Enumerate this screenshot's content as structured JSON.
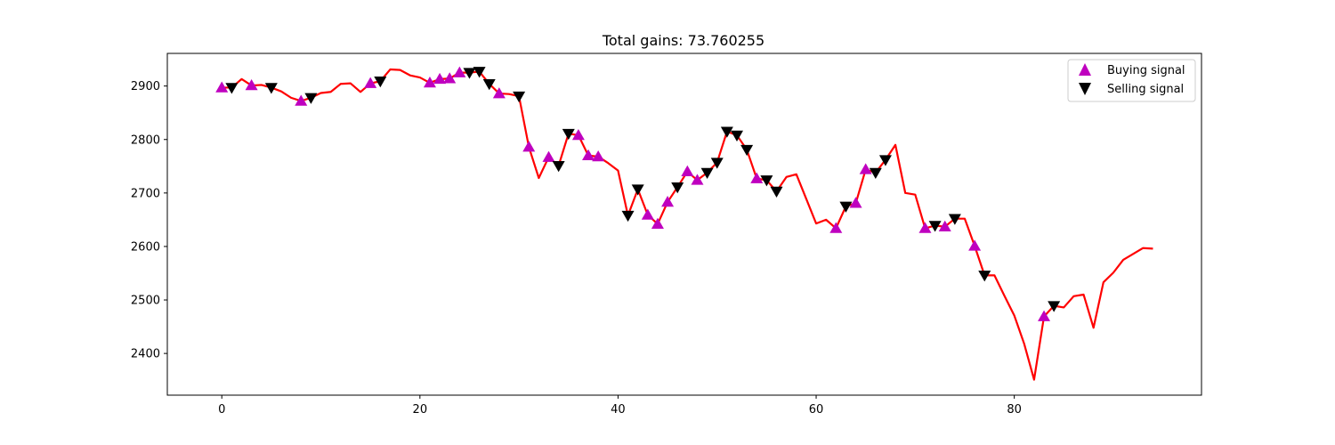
{
  "chart_data": {
    "type": "line",
    "title": "Total gains: 73.760255",
    "xlabel": "",
    "ylabel": "",
    "xlim": [
      -5.5,
      98.9
    ],
    "ylim": [
      2322,
      2961
    ],
    "xticks": [
      0,
      20,
      40,
      60,
      80
    ],
    "yticks": [
      2400,
      2500,
      2600,
      2700,
      2800,
      2900
    ],
    "xtick_labels": [
      "0",
      "20",
      "40",
      "60",
      "80"
    ],
    "ytick_labels": [
      "2400",
      "2500",
      "2600",
      "2700",
      "2800",
      "2900"
    ],
    "grid": false,
    "legend_position": "top-right",
    "line_color": "#ff0000",
    "buy_color": "#bf00bf",
    "sell_color": "#000000",
    "close": [
      2897,
      2897,
      2913,
      2901,
      2902,
      2897,
      2890,
      2878,
      2872,
      2878,
      2887,
      2889,
      2904,
      2905,
      2889,
      2905,
      2909,
      2931,
      2930,
      2920,
      2916,
      2906,
      2913,
      2914,
      2925,
      2925,
      2927,
      2904,
      2886,
      2885,
      2881,
      2786,
      2728,
      2767,
      2751,
      2811,
      2808,
      2770,
      2768,
      2756,
      2742,
      2658,
      2707,
      2659,
      2642,
      2683,
      2711,
      2740,
      2724,
      2738,
      2757,
      2815,
      2808,
      2781,
      2727,
      2724,
      2703,
      2730,
      2735,
      2689,
      2643,
      2650,
      2634,
      2675,
      2681,
      2744,
      2738,
      2762,
      2790,
      2700,
      2697,
      2634,
      2639,
      2637,
      2652,
      2652,
      2601,
      2546,
      2546,
      2508,
      2471,
      2418,
      2351,
      2469,
      2489,
      2486,
      2507,
      2510,
      2448,
      2533,
      2551,
      2575,
      2586,
      2597,
      2596
    ],
    "series": [
      {
        "name": "Buying signal",
        "marker": "triangle-up",
        "x": [
          0,
          3,
          8,
          15,
          21,
          22,
          23,
          24,
          28,
          31,
          33,
          36,
          37,
          38,
          43,
          44,
          45,
          47,
          48,
          54,
          62,
          64,
          65,
          71,
          73,
          76,
          83
        ],
        "y": [
          2897,
          2901,
          2872,
          2905,
          2906,
          2913,
          2914,
          2925,
          2886,
          2786,
          2767,
          2808,
          2770,
          2768,
          2659,
          2642,
          2683,
          2740,
          2724,
          2727,
          2634,
          2681,
          2744,
          2634,
          2637,
          2601,
          2469
        ]
      },
      {
        "name": "Selling signal",
        "marker": "triangle-down",
        "x": [
          1,
          5,
          9,
          16,
          25,
          26,
          27,
          30,
          34,
          35,
          41,
          42,
          46,
          49,
          50,
          51,
          52,
          53,
          55,
          56,
          63,
          66,
          67,
          72,
          74,
          77,
          84
        ],
        "y": [
          2897,
          2897,
          2878,
          2909,
          2925,
          2927,
          2904,
          2881,
          2751,
          2811,
          2658,
          2707,
          2711,
          2738,
          2757,
          2815,
          2808,
          2781,
          2724,
          2703,
          2675,
          2738,
          2762,
          2639,
          2652,
          2546,
          2489
        ]
      }
    ]
  }
}
